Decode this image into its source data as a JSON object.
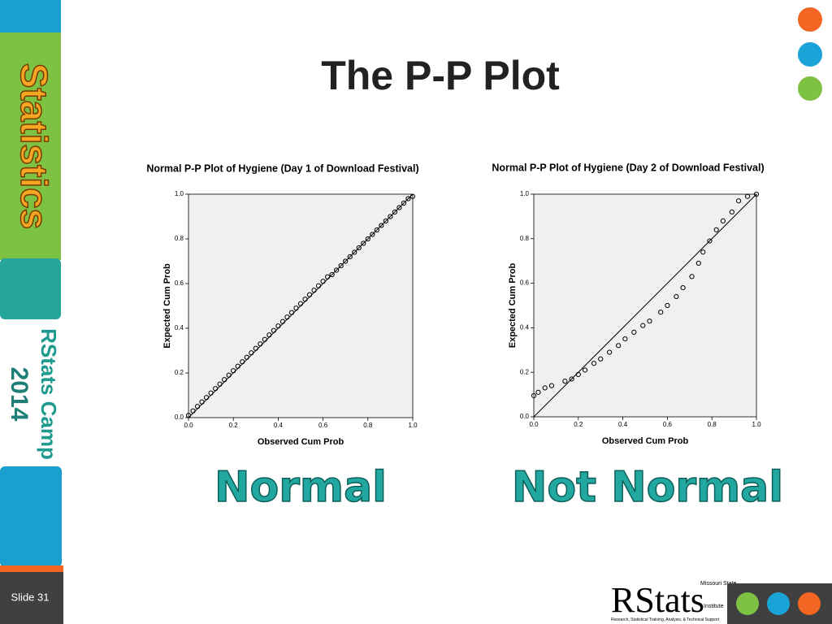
{
  "slide": {
    "title": "The P-P Plot",
    "sidebar_logo": "Statistics",
    "sidebar_camp": "RStats Camp",
    "sidebar_year": "2014",
    "slide_number": "Slide 31",
    "logo_main": "RStats",
    "logo_institute": "Institute",
    "logo_university": "Missouri State",
    "logo_tagline": "Research, Statistical Training, Analysis, & Technical Support",
    "captions": [
      "Normal",
      "Not Normal"
    ]
  },
  "chart_data": [
    {
      "type": "scatter",
      "title": "Normal P-P Plot of Hygiene (Day 1 of Download Festival)",
      "x_label": "Observed Cum Prob",
      "y_label": "Expected Cum Prob",
      "reference_line": true,
      "color": "#000000",
      "x": [
        0,
        0.02,
        0.04,
        0.06,
        0.08,
        0.1,
        0.12,
        0.14,
        0.16,
        0.18,
        0.2,
        0.22,
        0.24,
        0.26,
        0.28,
        0.3,
        0.32,
        0.34,
        0.36,
        0.38,
        0.4,
        0.42,
        0.44,
        0.46,
        0.48,
        0.5,
        0.52,
        0.54,
        0.56,
        0.58,
        0.6,
        0.62,
        0.64,
        0.66,
        0.68,
        0.7,
        0.72,
        0.74,
        0.76,
        0.78,
        0.8,
        0.82,
        0.84,
        0.86,
        0.88,
        0.9,
        0.92,
        0.94,
        0.96,
        0.98,
        1
      ],
      "y": [
        0.01,
        0.03,
        0.05,
        0.07,
        0.09,
        0.11,
        0.13,
        0.15,
        0.17,
        0.19,
        0.21,
        0.23,
        0.25,
        0.27,
        0.29,
        0.31,
        0.33,
        0.35,
        0.37,
        0.39,
        0.41,
        0.43,
        0.45,
        0.47,
        0.49,
        0.51,
        0.53,
        0.55,
        0.57,
        0.59,
        0.61,
        0.63,
        0.64,
        0.66,
        0.68,
        0.7,
        0.72,
        0.74,
        0.76,
        0.78,
        0.8,
        0.82,
        0.84,
        0.86,
        0.88,
        0.9,
        0.92,
        0.94,
        0.96,
        0.98,
        0.99
      ],
      "xlim": [
        0,
        1
      ],
      "ylim": [
        0,
        1
      ],
      "xticks": [
        {
          "value": 0,
          "label": "0.0"
        },
        0.2,
        0.4,
        0.6,
        0.8,
        {
          "value": 1,
          "label": "1.0"
        }
      ],
      "yticks": [
        {
          "value": 0,
          "label": "0.0"
        },
        0.2,
        0.4,
        0.6,
        0.8,
        {
          "value": 1,
          "label": "1.0"
        }
      ]
    },
    {
      "type": "scatter",
      "title": "Normal P-P Plot of Hygiene (Day 2 of Download Festival)",
      "x_label": "Observed Cum Prob",
      "y_label": "Expected Cum Prob",
      "reference_line": true,
      "color": "#000000",
      "x": [
        0,
        0.02,
        0.05,
        0.08,
        0.14,
        0.17,
        0.2,
        0.23,
        0.27,
        0.3,
        0.34,
        0.38,
        0.41,
        0.45,
        0.49,
        0.52,
        0.57,
        0.6,
        0.64,
        0.67,
        0.71,
        0.74,
        0.76,
        0.79,
        0.82,
        0.85,
        0.89,
        0.92,
        0.96,
        1
      ],
      "y": [
        0.095,
        0.11,
        0.13,
        0.14,
        0.16,
        0.17,
        0.19,
        0.21,
        0.24,
        0.26,
        0.29,
        0.32,
        0.35,
        0.38,
        0.41,
        0.43,
        0.47,
        0.5,
        0.54,
        0.58,
        0.63,
        0.69,
        0.74,
        0.79,
        0.84,
        0.88,
        0.92,
        0.97,
        0.99,
        1
      ],
      "xlim": [
        0,
        1
      ],
      "ylim": [
        0,
        1
      ],
      "xticks": [
        {
          "value": 0,
          "label": "0.0"
        },
        0.2,
        0.4,
        0.6,
        0.8,
        {
          "value": 1,
          "label": "1.0"
        }
      ],
      "yticks": [
        {
          "value": 0,
          "label": "0.0"
        },
        0.2,
        0.4,
        0.6,
        0.8,
        {
          "value": 1,
          "label": "1.0"
        }
      ]
    }
  ]
}
